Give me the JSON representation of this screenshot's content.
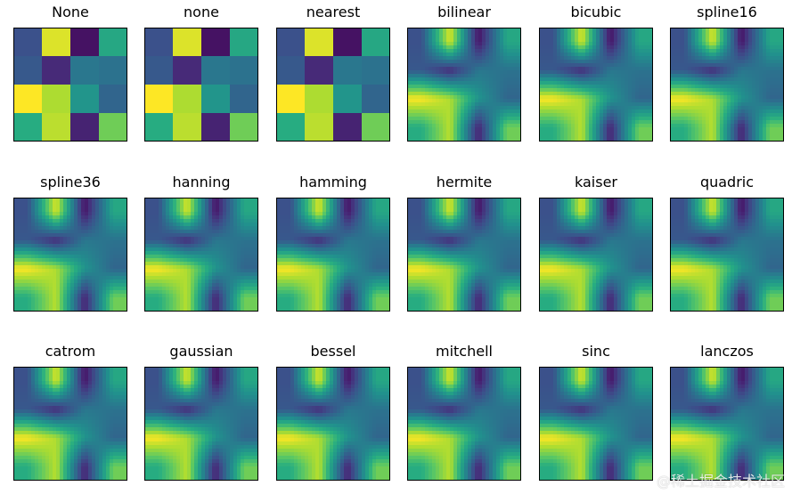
{
  "chart_data": {
    "type": "heatmap",
    "colormap": "viridis",
    "grid": [
      [
        0.25,
        0.95,
        0.05,
        0.6
      ],
      [
        0.28,
        0.12,
        0.4,
        0.38
      ],
      [
        1.0,
        0.88,
        0.52,
        0.33
      ],
      [
        0.62,
        0.9,
        0.1,
        0.78
      ]
    ],
    "vmin": 0.0,
    "vmax": 1.0,
    "panels": [
      {
        "title": "None",
        "method": "nearest"
      },
      {
        "title": "none",
        "method": "nearest"
      },
      {
        "title": "nearest",
        "method": "nearest"
      },
      {
        "title": "bilinear",
        "method": "smooth"
      },
      {
        "title": "bicubic",
        "method": "smooth"
      },
      {
        "title": "spline16",
        "method": "smooth"
      },
      {
        "title": "spline36",
        "method": "smooth"
      },
      {
        "title": "hanning",
        "method": "smooth"
      },
      {
        "title": "hamming",
        "method": "smooth"
      },
      {
        "title": "hermite",
        "method": "smooth"
      },
      {
        "title": "kaiser",
        "method": "smooth"
      },
      {
        "title": "quadric",
        "method": "smooth"
      },
      {
        "title": "catrom",
        "method": "smooth"
      },
      {
        "title": "gaussian",
        "method": "smooth"
      },
      {
        "title": "bessel",
        "method": "smooth"
      },
      {
        "title": "mitchell",
        "method": "smooth"
      },
      {
        "title": "sinc",
        "method": "smooth"
      },
      {
        "title": "lanczos",
        "method": "smooth"
      }
    ],
    "xticks": [],
    "yticks": []
  },
  "watermark": "@稀土掘金技术社区"
}
